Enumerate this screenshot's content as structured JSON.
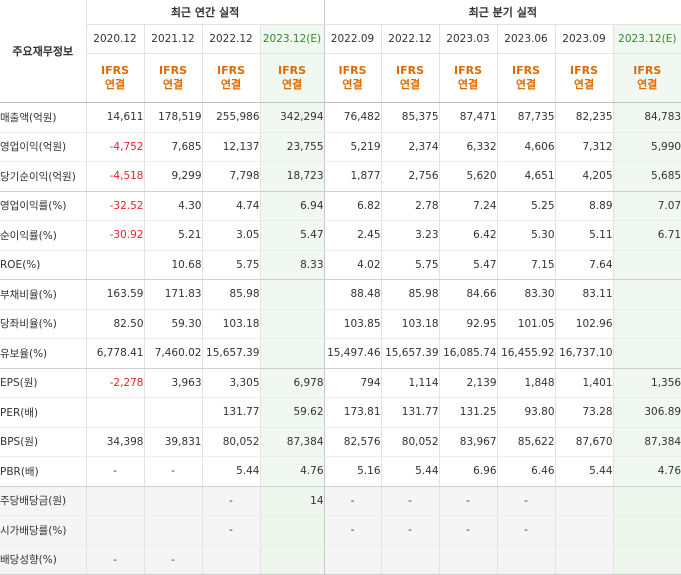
{
  "table": {
    "row_label_header": "주요재무정보",
    "annual_group": "최근 연간 실적",
    "quarterly_group": "최근 분기 실적",
    "periods": [
      "2020.12",
      "2021.12",
      "2022.12",
      "2023.12(E)",
      "2022.09",
      "2022.12",
      "2023.03",
      "2023.06",
      "2023.09",
      "2023.12(E)"
    ],
    "ifrs_top": "IFRS",
    "ifrs_bottom": "연결",
    "estimate_color": "#2a8f2a",
    "negative_color": "#e5242b",
    "ifrs_color": "#e06a00",
    "rows": [
      {
        "label": "매출액(억원)",
        "values": [
          "14,611",
          "178,519",
          "255,986",
          "342,294",
          "76,482",
          "85,375",
          "87,471",
          "87,735",
          "82,235",
          "84,783"
        ]
      },
      {
        "label": "영업이익(억원)",
        "values": [
          "-4,752",
          "7,685",
          "12,137",
          "23,755",
          "5,219",
          "2,374",
          "6,332",
          "4,606",
          "7,312",
          "5,990"
        ]
      },
      {
        "label": "당기순이익(억원)",
        "values": [
          "-4,518",
          "9,299",
          "7,798",
          "18,723",
          "1,877",
          "2,756",
          "5,620",
          "4,651",
          "4,205",
          "5,685"
        ]
      },
      {
        "label": "영업이익률(%)",
        "values": [
          "-32.52",
          "4.30",
          "4.74",
          "6.94",
          "6.82",
          "2.78",
          "7.24",
          "5.25",
          "8.89",
          "7.07"
        ]
      },
      {
        "label": "순이익률(%)",
        "values": [
          "-30.92",
          "5.21",
          "3.05",
          "5.47",
          "2.45",
          "3.23",
          "6.42",
          "5.30",
          "5.11",
          "6.71"
        ]
      },
      {
        "label": "ROE(%)",
        "values": [
          "",
          "10.68",
          "5.75",
          "8.33",
          "4.02",
          "5.75",
          "5.47",
          "7.15",
          "7.64",
          ""
        ]
      },
      {
        "label": "부채비율(%)",
        "values": [
          "163.59",
          "171.83",
          "85.98",
          "",
          "88.48",
          "85.98",
          "84.66",
          "83.30",
          "83.11",
          ""
        ]
      },
      {
        "label": "당좌비율(%)",
        "values": [
          "82.50",
          "59.30",
          "103.18",
          "",
          "103.85",
          "103.18",
          "92.95",
          "101.05",
          "102.96",
          ""
        ]
      },
      {
        "label": "유보율(%)",
        "values": [
          "6,778.41",
          "7,460.02",
          "15,657.39",
          "",
          "15,497.46",
          "15,657.39",
          "16,085.74",
          "16,455.92",
          "16,737.10",
          ""
        ]
      },
      {
        "label": "EPS(원)",
        "values": [
          "-2,278",
          "3,963",
          "3,305",
          "6,978",
          "794",
          "1,114",
          "2,139",
          "1,848",
          "1,401",
          "1,356"
        ]
      },
      {
        "label": "PER(배)",
        "values": [
          "",
          "",
          "131.77",
          "59.62",
          "173.81",
          "131.77",
          "131.25",
          "93.80",
          "73.28",
          "306.89"
        ]
      },
      {
        "label": "BPS(원)",
        "values": [
          "34,398",
          "39,831",
          "80,052",
          "87,384",
          "82,576",
          "80,052",
          "83,967",
          "85,622",
          "87,670",
          "87,384"
        ]
      },
      {
        "label": "PBR(배)",
        "values": [
          "-",
          "-",
          "5.44",
          "4.76",
          "5.16",
          "5.44",
          "6.96",
          "6.46",
          "5.44",
          "4.76"
        ]
      },
      {
        "label": "주당배당금(원)",
        "values": [
          "",
          "",
          "-",
          "14",
          "-",
          "-",
          "-",
          "-",
          "",
          ""
        ]
      },
      {
        "label": "시가배당률(%)",
        "values": [
          "",
          "",
          "-",
          "",
          "-",
          "-",
          "-",
          "-",
          "",
          ""
        ]
      },
      {
        "label": "배당성향(%)",
        "values": [
          "-",
          "-",
          "",
          "",
          "",
          "",
          "",
          "",
          "",
          ""
        ]
      }
    ]
  }
}
